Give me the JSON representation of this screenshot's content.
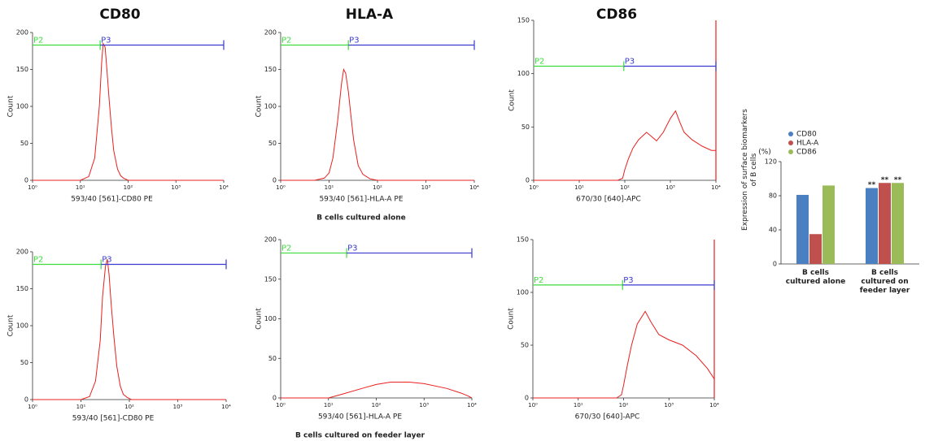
{
  "chart_data": [
    {
      "type": "line",
      "title": "CD80",
      "xlabel": "593/40 [561]-CD80 PE",
      "ylabel": "Count",
      "color": "#e8201f",
      "x": [
        1,
        10,
        15,
        20,
        25,
        28,
        30,
        33,
        36,
        40,
        45,
        50,
        60,
        70,
        80,
        100,
        10000
      ],
      "values": [
        0,
        0,
        5,
        30,
        100,
        160,
        185,
        180,
        150,
        110,
        70,
        40,
        15,
        6,
        3,
        0,
        0
      ],
      "xscale": "log",
      "xlim": [
        1,
        10000
      ],
      "xticks": [
        {
          "value": 1,
          "label": "10⁰"
        },
        {
          "value": 10,
          "label": "10¹"
        },
        {
          "value": 100,
          "label": "10²"
        },
        {
          "value": 1000,
          "label": "10³"
        },
        {
          "value": 10000,
          "label": "10⁴"
        }
      ],
      "ylim": [
        0,
        200
      ],
      "yticks": [
        0,
        50,
        100,
        150,
        200
      ],
      "gates": [
        {
          "name": "P2",
          "color": "#3ddc3d",
          "from": 1,
          "to": 26,
          "level": 183
        },
        {
          "name": "P3",
          "color": "#3a3ad0",
          "from": 26,
          "to": 10000,
          "level": 183
        }
      ]
    },
    {
      "type": "line",
      "title": "HLA-A",
      "xlabel": "593/40 [561]-HLA-A PE",
      "ylabel": "Count",
      "caption": "B cells  cultured alone",
      "color": "#e8201f",
      "x": [
        1,
        5,
        8,
        10,
        12,
        15,
        18,
        20,
        22,
        25,
        28,
        32,
        40,
        50,
        70,
        100,
        10000
      ],
      "values": [
        0,
        0,
        3,
        10,
        30,
        80,
        130,
        150,
        145,
        120,
        90,
        55,
        20,
        8,
        2,
        0,
        0
      ],
      "xscale": "log",
      "xlim": [
        1,
        10000
      ],
      "xticks": [
        {
          "value": 1,
          "label": "10⁰"
        },
        {
          "value": 10,
          "label": "10¹"
        },
        {
          "value": 100,
          "label": "10²"
        },
        {
          "value": 1000,
          "label": "10³"
        },
        {
          "value": 10000,
          "label": "10⁴"
        }
      ],
      "ylim": [
        0,
        200
      ],
      "yticks": [
        0,
        50,
        100,
        150,
        200
      ],
      "gates": [
        {
          "name": "P2",
          "color": "#3ddc3d",
          "from": 1,
          "to": 25,
          "level": 183
        },
        {
          "name": "P3",
          "color": "#3a3ad0",
          "from": 25,
          "to": 10000,
          "level": 183
        }
      ]
    },
    {
      "type": "line",
      "title": "CD86",
      "xlabel": "670/30 [640]-APC",
      "ylabel": "Count",
      "color": "#e8201f",
      "right_edge_line": true,
      "x": [
        1,
        70,
        90,
        100,
        120,
        150,
        200,
        300,
        500,
        700,
        1000,
        1300,
        1600,
        2000,
        3000,
        5000,
        8000,
        10000
      ],
      "values": [
        0,
        0,
        2,
        10,
        20,
        30,
        38,
        45,
        37,
        45,
        58,
        65,
        55,
        45,
        38,
        32,
        28,
        28
      ],
      "xscale": "log",
      "xlim": [
        1,
        10000
      ],
      "xticks": [
        {
          "value": 1,
          "label": "10⁰"
        },
        {
          "value": 10,
          "label": "10¹"
        },
        {
          "value": 100,
          "label": "10²"
        },
        {
          "value": 1000,
          "label": "10³"
        },
        {
          "value": 10000,
          "label": "10⁴"
        }
      ],
      "ylim": [
        0,
        150
      ],
      "yticks": [
        0,
        50,
        100,
        150
      ],
      "gates": [
        {
          "name": "P2",
          "color": "#3ddc3d",
          "from": 1,
          "to": 95,
          "level": 107
        },
        {
          "name": "P3",
          "color": "#3a3ad0",
          "from": 95,
          "to": 10000,
          "level": 107
        }
      ]
    },
    {
      "type": "line",
      "xlabel": "593/40 [561]-CD80 PE",
      "ylabel": "Count",
      "color": "#e8201f",
      "x": [
        1,
        10,
        15,
        20,
        25,
        28,
        32,
        35,
        38,
        42,
        48,
        55,
        65,
        75,
        90,
        110,
        10000
      ],
      "values": [
        0,
        0,
        4,
        25,
        80,
        140,
        180,
        190,
        170,
        130,
        85,
        45,
        18,
        7,
        3,
        0,
        0
      ],
      "xscale": "log",
      "xlim": [
        1,
        10000
      ],
      "xticks": [
        {
          "value": 1,
          "label": "10⁰"
        },
        {
          "value": 10,
          "label": "10¹"
        },
        {
          "value": 100,
          "label": "10²"
        },
        {
          "value": 1000,
          "label": "10³"
        },
        {
          "value": 10000,
          "label": "10⁴"
        }
      ],
      "ylim": [
        0,
        200
      ],
      "yticks": [
        0,
        50,
        100,
        150,
        200
      ],
      "gates": [
        {
          "name": "P2",
          "color": "#3ddc3d",
          "from": 1,
          "to": 26,
          "level": 183
        },
        {
          "name": "P3",
          "color": "#3a3ad0",
          "from": 26,
          "to": 10000,
          "level": 183
        }
      ]
    },
    {
      "type": "line",
      "xlabel": "593/40 [561]-HLA-A PE",
      "ylabel": "Count",
      "caption": "B cells  cultured  on feeder layer",
      "color": "#e8201f",
      "x": [
        1,
        10,
        20,
        50,
        100,
        200,
        500,
        1000,
        3000,
        6000,
        8000,
        10000
      ],
      "values": [
        0,
        0,
        5,
        12,
        17,
        20,
        20,
        18,
        12,
        6,
        3,
        0
      ],
      "xscale": "log",
      "xlim": [
        1,
        10000
      ],
      "xticks": [
        {
          "value": 1,
          "label": "10⁰"
        },
        {
          "value": 10,
          "label": "10¹"
        },
        {
          "value": 100,
          "label": "10²"
        },
        {
          "value": 1000,
          "label": "10³"
        },
        {
          "value": 10000,
          "label": "10⁴"
        }
      ],
      "ylim": [
        0,
        200
      ],
      "yticks": [
        0,
        50,
        100,
        150,
        200
      ],
      "gates": [
        {
          "name": "P2",
          "color": "#3ddc3d",
          "from": 1,
          "to": 24,
          "level": 183
        },
        {
          "name": "P3",
          "color": "#3a3ad0",
          "from": 24,
          "to": 10000,
          "level": 183
        }
      ]
    },
    {
      "type": "line",
      "xlabel": "670/30 [640]-APC",
      "ylabel": "Count",
      "color": "#e8201f",
      "right_edge_line": true,
      "x": [
        1,
        70,
        90,
        100,
        120,
        150,
        200,
        300,
        400,
        600,
        1000,
        2000,
        4000,
        7000,
        10000
      ],
      "values": [
        0,
        0,
        3,
        12,
        30,
        50,
        70,
        82,
        72,
        60,
        55,
        50,
        40,
        28,
        18
      ],
      "xscale": "log",
      "xlim": [
        1,
        10000
      ],
      "xticks": [
        {
          "value": 1,
          "label": "10⁰"
        },
        {
          "value": 10,
          "label": "10¹"
        },
        {
          "value": 100,
          "label": "10²"
        },
        {
          "value": 1000,
          "label": "10³"
        },
        {
          "value": 10000,
          "label": "10⁴"
        }
      ],
      "ylim": [
        0,
        150
      ],
      "yticks": [
        0,
        50,
        100,
        150
      ],
      "gates": [
        {
          "name": "P2",
          "color": "#3ddc3d",
          "from": 1,
          "to": 95,
          "level": 107
        },
        {
          "name": "P3",
          "color": "#3a3ad0",
          "from": 95,
          "to": 10000,
          "level": 107
        }
      ]
    },
    {
      "type": "bar",
      "ylabel": "Expression of surface biomarkers of  B cells",
      "unit_label": "(%)",
      "categories": [
        "B cells cultured alone",
        "B cells cultured on feeder layer"
      ],
      "series": [
        {
          "name": "CD80",
          "color": "#4a7fc1",
          "values": [
            81,
            89
          ]
        },
        {
          "name": "HLA-A",
          "color": "#c0504d",
          "values": [
            35,
            95
          ]
        },
        {
          "name": "CD86",
          "color": "#9bbb59",
          "values": [
            92,
            95
          ]
        }
      ],
      "ylim": [
        0,
        120
      ],
      "yticks": [
        0,
        40,
        80,
        120
      ],
      "legend": "top-left",
      "annotations": [
        {
          "text": "**",
          "series": 0,
          "index": 1
        },
        {
          "text": "**",
          "series": 1,
          "index": 1
        },
        {
          "text": "**",
          "series": 2,
          "index": 1
        }
      ]
    }
  ]
}
